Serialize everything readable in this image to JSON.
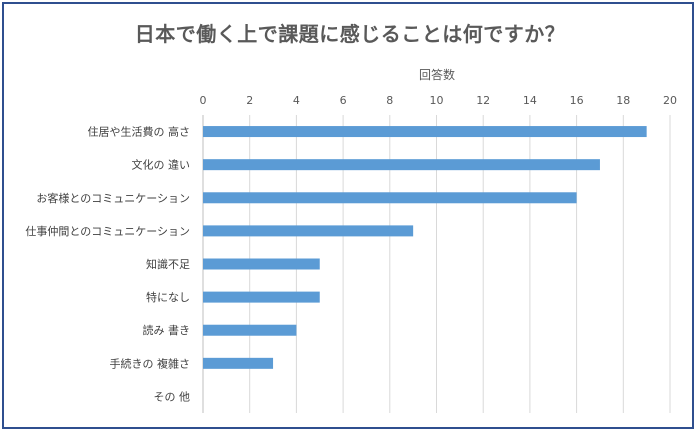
{
  "chart_data": {
    "type": "bar",
    "orientation": "horizontal",
    "title": "日本で働く上で課題に感じることは何ですか？",
    "xlabel": "回答数",
    "xlim": [
      0,
      20
    ],
    "xticks": [
      0,
      2,
      4,
      6,
      8,
      10,
      12,
      14,
      16,
      18,
      20
    ],
    "grid": true,
    "categories": [
      "住居や生活費の 高さ",
      "文化の 違い",
      "お客様とのコミュニケーション",
      "仕事仲間とのコミュニケーション",
      "知識不足",
      "特になし",
      "読み 書き",
      "手続きの 複雑さ",
      "その 他"
    ],
    "values": [
      19,
      17,
      16,
      9,
      5,
      5,
      4,
      3,
      0
    ],
    "bar_color": "#5b9bd5"
  }
}
